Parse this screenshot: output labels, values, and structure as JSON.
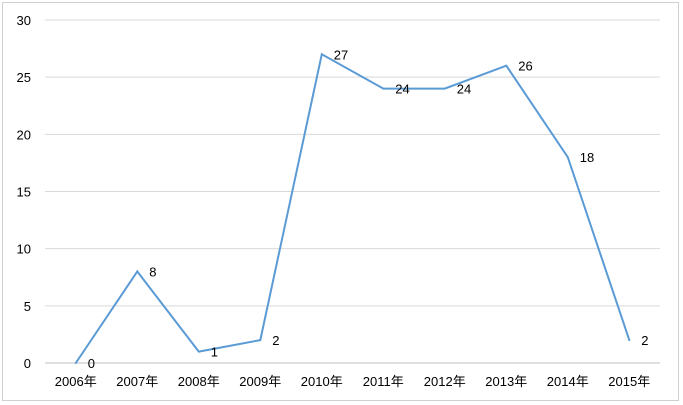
{
  "chart_data": {
    "type": "line",
    "title": "",
    "xlabel": "",
    "ylabel": "",
    "categories": [
      "2006年",
      "2007年",
      "2008年",
      "2009年",
      "2010年",
      "2011年",
      "2012年",
      "2013年",
      "2014年",
      "2015年"
    ],
    "series": [
      {
        "values": [
          0,
          8,
          1,
          2,
          27,
          24,
          24,
          26,
          18,
          2
        ]
      }
    ],
    "data_labels": [
      "0",
      "8",
      "1",
      "2",
      "27",
      "24",
      "24",
      "26",
      "18",
      "2"
    ],
    "ylim": [
      0,
      30
    ],
    "yticks": [
      "0",
      "5",
      "10",
      "15",
      "20",
      "25",
      "30"
    ],
    "grid": true,
    "legend": "none",
    "colors": {
      "line": "#5b9bd5",
      "grid": "#d9d9d9",
      "axis": "#bfbfbf"
    }
  }
}
